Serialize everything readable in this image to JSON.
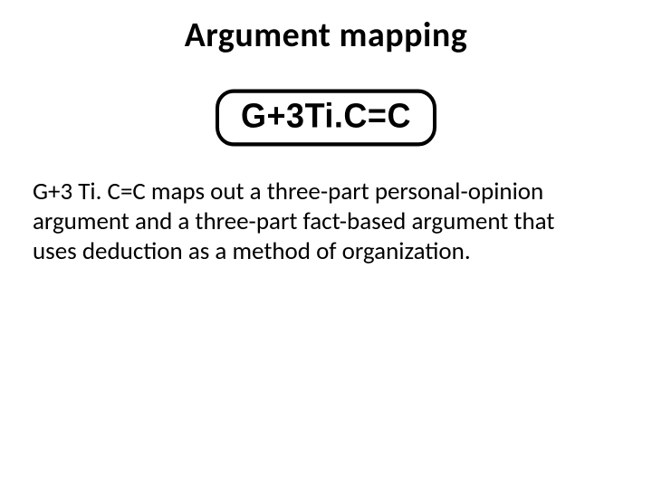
{
  "title": "Argument mapping",
  "formula": "G+3Ti.C=C",
  "body": "G+3 Ti. C=C maps out a three-part personal-opinion argument and a three-part fact-based argument that uses deduction as a method of organization.",
  "style": {
    "background_color": "#ffffff",
    "text_color": "#000000",
    "title_fontsize": 38,
    "title_fontweight": 700,
    "formula_fontsize": 36,
    "formula_fontweight": 900,
    "formula_border_color": "#000000",
    "formula_border_width": 4,
    "formula_border_radius": 20,
    "body_fontsize": 27,
    "body_lineheight": 1.22,
    "font_family": "Calibri, Arial, sans-serif",
    "slide_width": 720,
    "slide_height": 540
  }
}
